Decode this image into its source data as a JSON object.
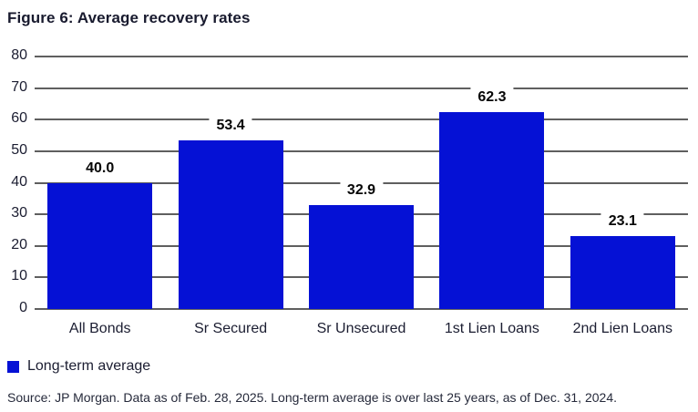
{
  "title": "Figure 6: Average recovery rates",
  "colors": {
    "bar": "#0511d5",
    "gridline": "#5f5f5f",
    "text": "#1b1d31"
  },
  "chart_data": {
    "type": "bar",
    "title": "Figure 6: Average recovery rates",
    "categories": [
      "All Bonds",
      "Sr Secured",
      "Sr Unsecured",
      "1st Lien Loans",
      "2nd Lien Loans"
    ],
    "values": [
      40.0,
      53.4,
      32.9,
      62.3,
      23.1
    ],
    "value_labels": [
      "40.0",
      "53.4",
      "32.9",
      "62.3",
      "23.1"
    ],
    "xlabel": "",
    "ylabel": "",
    "ylim": [
      0,
      80
    ],
    "ytick_step": 10,
    "ytick_labels": [
      "0",
      "10",
      "20",
      "30",
      "40",
      "50",
      "60",
      "70",
      "80"
    ],
    "grid": true,
    "bar_color": "#0511d5",
    "legend_position": "bottom-left"
  },
  "legend": {
    "label": "Long-term average",
    "swatch_color": "#0511d5"
  },
  "source": "Source: JP Morgan. Data as of Feb. 28, 2025. Long-term average is over last 25 years, as of Dec. 31, 2024."
}
